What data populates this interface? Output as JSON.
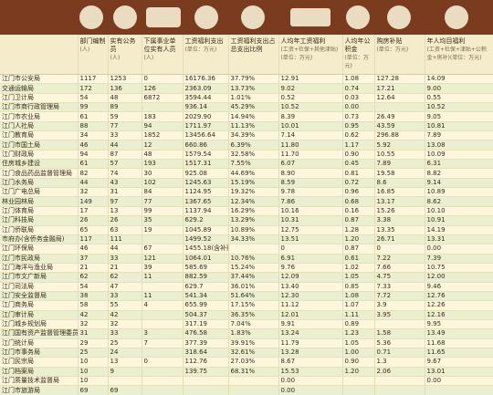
{
  "table": {
    "headers": [
      {
        "label": "部门编制",
        "unit": "(人)"
      },
      {
        "label": "实有公务员",
        "unit": "(人)"
      },
      {
        "label": "下属事业单位实有人员",
        "unit": "(人)"
      },
      {
        "label": "工资福利支出",
        "unit": "(单位：万元)"
      },
      {
        "label": "工资福利支出占总支出比例",
        "unit": null
      },
      {
        "label": "人均年工资福利",
        "unit": "(工资+社保+其他津贴)(单位：万元)"
      },
      {
        "label": "人均年公积金",
        "unit": "(单位：万元)"
      },
      {
        "label": "购房补贴",
        "unit": "(单位：万元)"
      },
      {
        "label": "年人均目福利",
        "unit": "(工资+社保+津贴+公积金+房补)(单位：万元)"
      }
    ],
    "rows": [
      [
        "江门市公安局",
        "1117",
        "1253",
        "0",
        "16176.36",
        "37.79%",
        "12.91",
        "1.08",
        "127.28",
        "14.09"
      ],
      [
        "交通运输局",
        "172",
        "136",
        "126",
        "2363.09",
        "13.73%",
        "9.02",
        "0.74",
        "17.21",
        "9.00"
      ],
      [
        "江门卫计局",
        "54",
        "48",
        "6872",
        "3594.44",
        "1.01%",
        "0.52",
        "0.03",
        "12.64",
        "0.55"
      ],
      [
        "江门市商行政管理局",
        "99",
        "89",
        null,
        "936.14",
        "45.29%",
        "10.52",
        "0.00",
        null,
        "10.52"
      ],
      [
        "江门市农业局",
        "61",
        "59",
        "183",
        "2029.90",
        "14.94%",
        "8.39",
        "0.73",
        "26.49",
        "9.05"
      ],
      [
        "江门人社局",
        "88",
        "77",
        "94",
        "1711.97",
        "11.13%",
        "10.01",
        "0.95",
        "43.59",
        "10.81"
      ],
      [
        "江门教育局",
        "34",
        "33",
        "1852",
        "13456.64",
        "34.39%",
        "7.14",
        "0.62",
        "296.88",
        "7.89"
      ],
      [
        "江门市国土局",
        "46",
        "44",
        "12",
        "660.86",
        "6.39%",
        "11.80",
        "1.17",
        "5.92",
        "13.08"
      ],
      [
        "江门财政局",
        "94",
        "87",
        "48",
        "1579.54",
        "32.58%",
        "11.70",
        "0.90",
        "10.55",
        "10.09"
      ],
      [
        "住房城乡建设",
        "61",
        "57",
        "193",
        "1517.31",
        "7.55%",
        "6.07",
        "0.45",
        "7.89",
        "6.31"
      ],
      [
        "江门食品药品监督管理局",
        "82",
        "74",
        "30",
        "925.08",
        "44.69%",
        "8.90",
        "0.81",
        "19.58",
        "8.82"
      ],
      [
        "江门水务局",
        "44",
        "43",
        "102",
        "1245.63",
        "15.19%",
        "8.59",
        "0.72",
        "8.6",
        "9.14"
      ],
      [
        "江门广电总局",
        "32",
        "31",
        "84",
        "1124.95",
        "19.32%",
        "9.78",
        "0.96",
        "16.85",
        "10.89"
      ],
      [
        "林业园林局",
        "149",
        "97",
        "77",
        "1367.65",
        "12.34%",
        "7.86",
        "0.68",
        "13.17",
        "8.62"
      ],
      [
        "江门体育局",
        "17",
        "13",
        "99",
        "1137.94",
        "16.29%",
        "10.16",
        "0.16",
        "15.26",
        "10.10"
      ],
      [
        "江门科技局",
        "26",
        "26",
        "35",
        "629.2",
        "13.29%",
        "10.31",
        "0.87",
        "3.38",
        "10.91"
      ],
      [
        "江门侨联局",
        "65",
        "63",
        "19",
        "1045.89",
        "10.89%",
        "12.75",
        "1.28",
        "13.35",
        "14.19"
      ],
      [
        "市府办(含侨务金融局)",
        "117",
        "111",
        null,
        "1499.52",
        "34.33%",
        "13.51",
        "1.20",
        "26.71",
        "13.31"
      ],
      [
        "江门环保局",
        "46",
        "44",
        "67",
        "1455.18(含补贴项)",
        null,
        "0",
        "0.87",
        "0",
        "0.00"
      ],
      [
        "江门市民政局",
        "37",
        "33",
        "121",
        "1064.01",
        "10.76%",
        "6.91",
        "0.61",
        "7.22",
        "7.39"
      ],
      [
        "江门海洋与渔业局",
        "21",
        "21",
        "39",
        "585.69",
        "15.24%",
        "9.76",
        "1.02",
        "7.66",
        "10.75"
      ],
      [
        "江门市文广新局",
        "62",
        "62",
        "11",
        "882.59",
        "37.44%",
        "12.09",
        "1.05",
        "4.75",
        "12.00"
      ],
      [
        "江门司法局",
        "54",
        "47",
        null,
        "629.7",
        "36.01%",
        "13.40",
        "0.85",
        "7.33",
        "9.46"
      ],
      [
        "江门安全监督局",
        "38",
        "33",
        "11",
        "541.34",
        "51.64%",
        "12.30",
        "1.08",
        "7.72",
        "12.76"
      ],
      [
        "江门商务局",
        "58",
        "55",
        "4",
        "655.99",
        "17.15%",
        "11.12",
        "1.07",
        "3.9",
        "12.26"
      ],
      [
        "江门审计局",
        "42",
        "42",
        null,
        "504.37",
        "36.35%",
        "12.01",
        "1.11",
        "3.95",
        "12.16"
      ],
      [
        "江门城乡规划局",
        "32",
        "32",
        null,
        "317.19",
        "7.04%",
        "9.91",
        "0.89",
        null,
        "9.95"
      ],
      [
        "江门国有资产监督管理委员会",
        "31",
        "33",
        "3",
        "476.58",
        "1.83%",
        "13.24",
        "1.23",
        "1.58",
        "13.49"
      ],
      [
        "江门统计局",
        "29",
        "25",
        "7",
        "377.39",
        "39.91%",
        "11.79",
        "1.05",
        "5.36",
        "11.68"
      ],
      [
        "江门市事务局",
        "25",
        "24",
        null,
        "318.64",
        "32.61%",
        "13.28",
        "1.00",
        "0.71",
        "11.65"
      ],
      [
        "江门民宗局",
        "10",
        "13",
        "0",
        "112.76",
        "27.03%",
        "8.67",
        "0.90",
        "1.3",
        "9.67"
      ],
      [
        "江门档案局",
        "10",
        "9",
        null,
        "139.75",
        "68.31%",
        "15.53",
        "1.20",
        "2.06",
        "13.01"
      ],
      [
        "江门质量技术监督局",
        "10",
        null,
        null,
        null,
        null,
        "0.00",
        null,
        null,
        "0.00"
      ],
      [
        "江门市旅游局",
        "69",
        "69",
        null,
        null,
        null,
        "0.00",
        null,
        null,
        null
      ]
    ]
  }
}
